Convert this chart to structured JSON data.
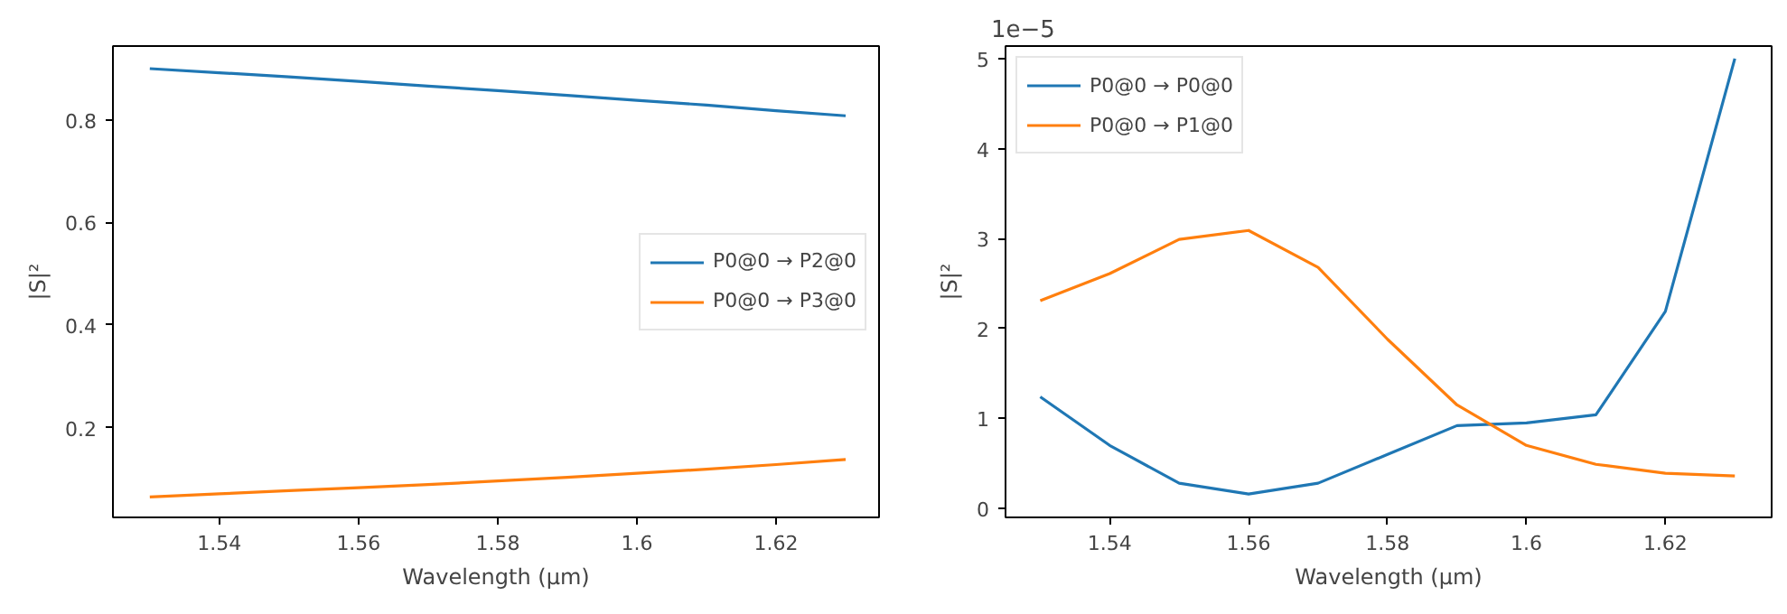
{
  "chart_data": [
    {
      "type": "line",
      "xlabel": "Wavelength (µm)",
      "ylabel": "|S|²",
      "x": [
        1.53,
        1.54,
        1.55,
        1.56,
        1.57,
        1.58,
        1.59,
        1.6,
        1.61,
        1.62,
        1.63
      ],
      "series": [
        {
          "name": "P0@0 → P2@0",
          "color": "#1f77b4",
          "values": [
            0.9,
            0.892,
            0.884,
            0.875,
            0.866,
            0.857,
            0.848,
            0.838,
            0.829,
            0.818,
            0.808
          ]
        },
        {
          "name": "P0@0 → P3@0",
          "color": "#ff7f0e",
          "values": [
            0.065,
            0.071,
            0.077,
            0.083,
            0.089,
            0.096,
            0.103,
            0.111,
            0.119,
            0.128,
            0.138
          ]
        }
      ],
      "xlim": [
        1.5247,
        1.6348
      ],
      "ylim": [
        0.025,
        0.944
      ],
      "xticks": [
        1.54,
        1.56,
        1.58,
        1.6,
        1.62
      ],
      "yticks": [
        0.2,
        0.4,
        0.6,
        0.8
      ],
      "grid": false,
      "legend": "right",
      "line_style": "solid"
    },
    {
      "type": "line",
      "xlabel": "Wavelength (µm)",
      "ylabel": "|S|²",
      "annotations": [
        "1e−5"
      ],
      "x": [
        1.53,
        1.54,
        1.55,
        1.56,
        1.57,
        1.58,
        1.59,
        1.6,
        1.61,
        1.62,
        1.63
      ],
      "series": [
        {
          "name": "P0@0 → P0@0",
          "color": "#1f77b4",
          "values": [
            1.24,
            0.7,
            0.28,
            0.16,
            0.28,
            0.6,
            0.92,
            0.95,
            1.04,
            2.19,
            5.0
          ]
        },
        {
          "name": "P0@0 → P1@0",
          "color": "#ff7f0e",
          "values": [
            2.31,
            2.61,
            2.99,
            3.09,
            2.68,
            1.88,
            1.15,
            0.7,
            0.49,
            0.39,
            0.36
          ]
        }
      ],
      "xlim": [
        1.525,
        1.6353
      ],
      "ylim": [
        -0.1,
        5.14
      ],
      "xticks": [
        1.54,
        1.56,
        1.58,
        1.6,
        1.62
      ],
      "yticks": [
        0,
        1,
        2,
        3,
        4,
        5
      ],
      "grid": false,
      "legend": "top left",
      "line_style": "solid"
    }
  ]
}
